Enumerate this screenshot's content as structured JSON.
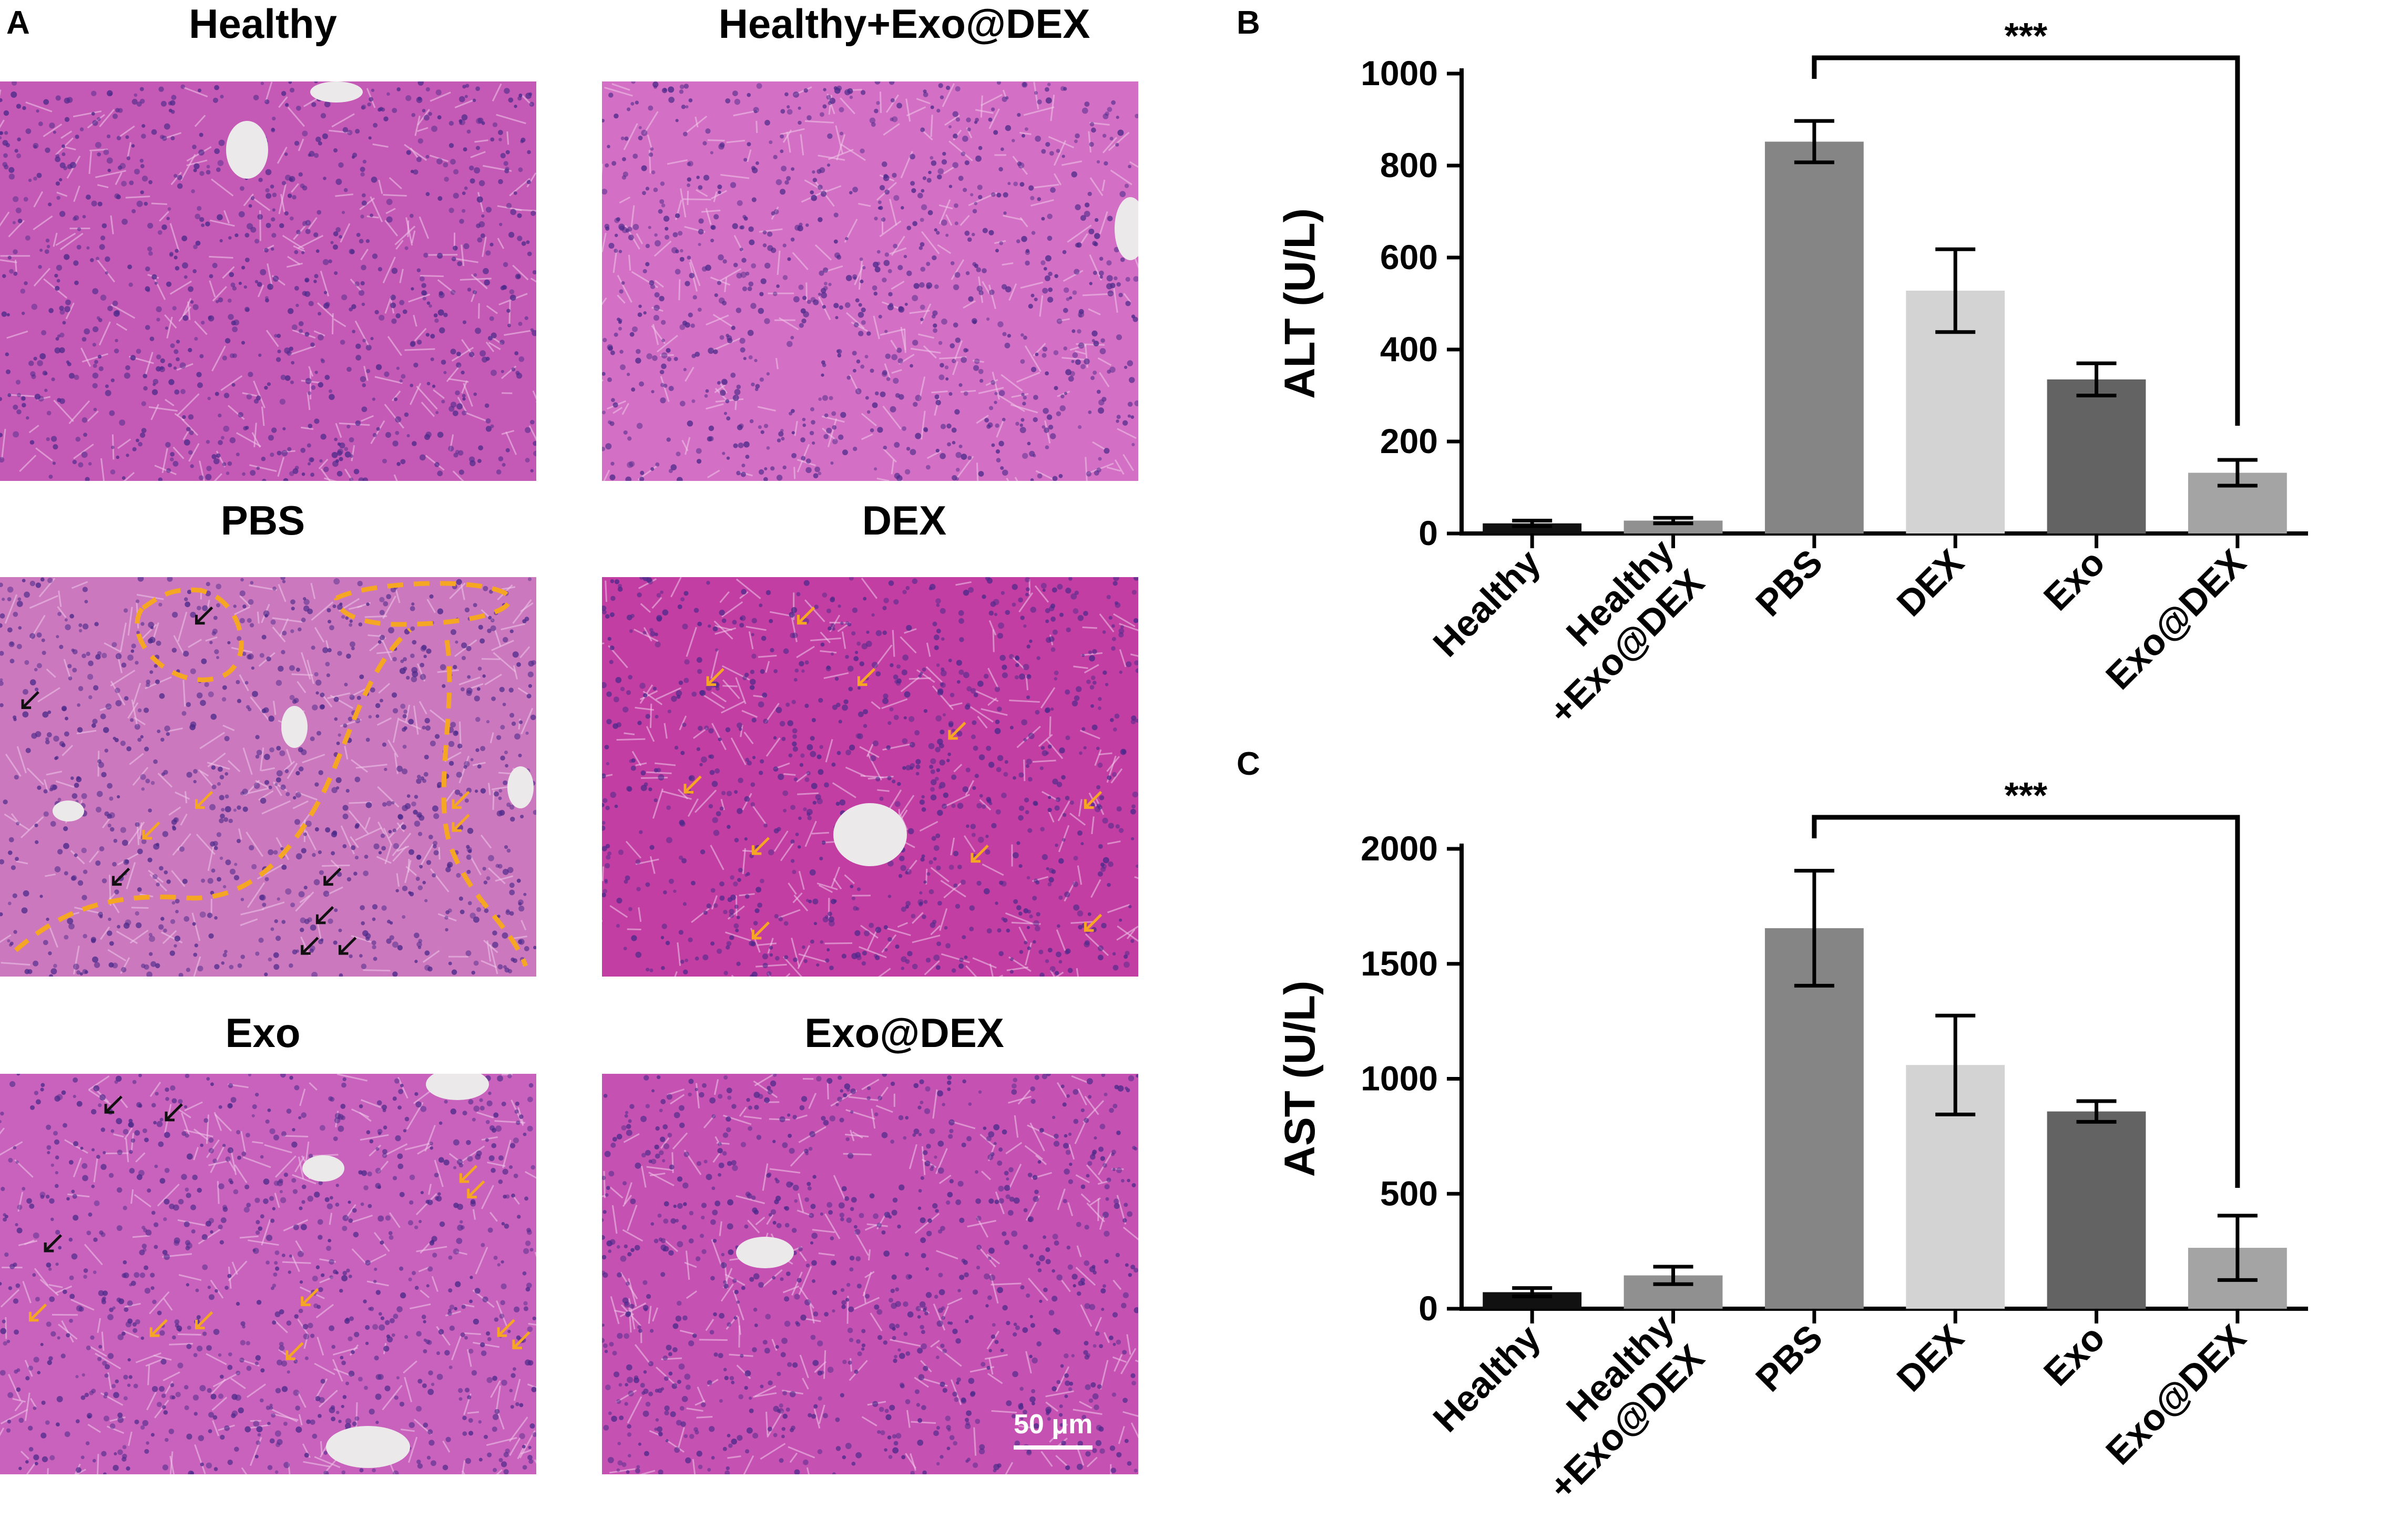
{
  "panel_labels": {
    "a": "A",
    "b": "B",
    "c": "C"
  },
  "histology": {
    "panels": [
      {
        "title": "Healthy",
        "tissue_color": "#c45ab5"
      },
      {
        "title": "Healthy+Exo@DEX",
        "tissue_color": "#d36fc4"
      },
      {
        "title": "PBS",
        "tissue_color": "#cb78be"
      },
      {
        "title": "DEX",
        "tissue_color": "#c23ea3"
      },
      {
        "title": "Exo",
        "tissue_color": "#c862bc"
      },
      {
        "title": "Exo@DEX",
        "tissue_color": "#c552b2"
      }
    ],
    "scale_bar": "50 μm",
    "arrow_colors": {
      "black": "#111111",
      "orange": "#f5a623"
    }
  },
  "chart_data": [
    {
      "type": "bar",
      "panel": "B",
      "categories": [
        "Healthy",
        "Healthy\n+Exo@DEX",
        "PBS",
        "DEX",
        "Exo",
        "Exo@DEX"
      ],
      "values": [
        22,
        28,
        852,
        528,
        335,
        132
      ],
      "errors": [
        6,
        6,
        45,
        90,
        35,
        28
      ],
      "colors": [
        "#111111",
        "#909090",
        "#858585",
        "#d3d3d3",
        "#636363",
        "#a4a4a4"
      ],
      "title": "",
      "xlabel": "",
      "ylabel": "ALT (U/L)",
      "ylim": [
        0,
        1000
      ],
      "yticks": [
        0,
        200,
        400,
        600,
        800,
        1000
      ],
      "significance": {
        "from": "PBS",
        "to": "Exo@DEX",
        "label": "***"
      }
    },
    {
      "type": "bar",
      "panel": "C",
      "categories": [
        "Healthy",
        "Healthy\n+Exo@DEX",
        "PBS",
        "DEX",
        "Exo",
        "Exo@DEX"
      ],
      "values": [
        72,
        145,
        1655,
        1060,
        858,
        265
      ],
      "errors": [
        18,
        38,
        250,
        215,
        45,
        140
      ],
      "colors": [
        "#111111",
        "#909090",
        "#858585",
        "#d3d3d3",
        "#636363",
        "#a4a4a4"
      ],
      "title": "",
      "xlabel": "",
      "ylabel": "AST (U/L)",
      "ylim": [
        0,
        2000
      ],
      "yticks": [
        0,
        500,
        1000,
        1500,
        2000
      ],
      "significance": {
        "from": "PBS",
        "to": "Exo@DEX",
        "label": "***"
      }
    }
  ]
}
